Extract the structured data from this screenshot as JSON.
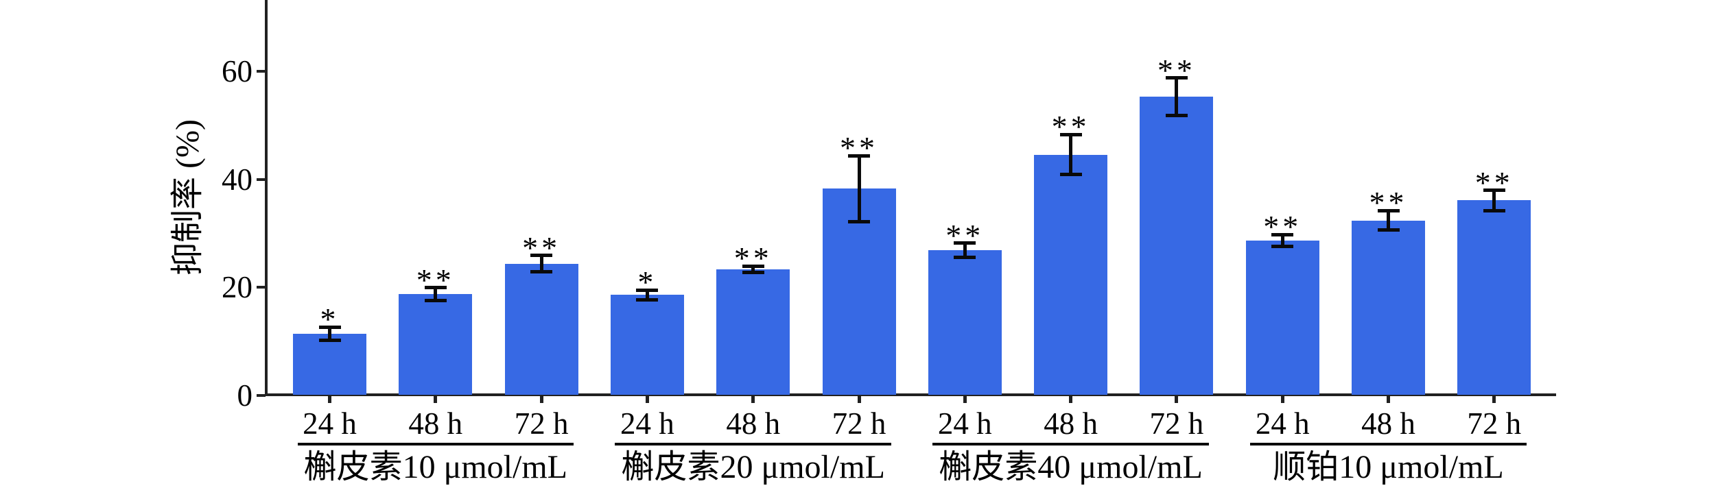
{
  "chart_data": {
    "type": "bar",
    "title": "",
    "ylabel": "抑制率 (%)",
    "xlabel": "",
    "ylim": [
      0,
      73
    ],
    "yticks": [
      0,
      20,
      40,
      60
    ],
    "grid": false,
    "legend": "none",
    "bar_color": "#3769E4",
    "error_bar_color": "#0a0a0a",
    "axis_color": "#212121",
    "categories_per_group": [
      "24 h",
      "48 h",
      "72 h"
    ],
    "groups": [
      {
        "label": "槲皮素10 μmol/mL",
        "bars": [
          {
            "time": "24 h",
            "value": 11.4,
            "error": 1.2,
            "sig": "*"
          },
          {
            "time": "48 h",
            "value": 18.7,
            "error": 1.2,
            "sig": "**"
          },
          {
            "time": "72 h",
            "value": 24.4,
            "error": 1.5,
            "sig": "**"
          }
        ]
      },
      {
        "label": "槲皮素20 μmol/mL",
        "bars": [
          {
            "time": "24 h",
            "value": 18.6,
            "error": 0.9,
            "sig": "*"
          },
          {
            "time": "48 h",
            "value": 23.3,
            "error": 0.6,
            "sig": "**"
          },
          {
            "time": "72 h",
            "value": 38.3,
            "error": 6.1,
            "sig": "**"
          }
        ]
      },
      {
        "label": "槲皮素40 μmol/mL",
        "bars": [
          {
            "time": "24 h",
            "value": 26.9,
            "error": 1.3,
            "sig": "**"
          },
          {
            "time": "48 h",
            "value": 44.6,
            "error": 3.7,
            "sig": "**"
          },
          {
            "time": "72 h",
            "value": 55.3,
            "error": 3.5,
            "sig": "**"
          }
        ]
      },
      {
        "label": "顺铂10 μmol/mL",
        "bars": [
          {
            "time": "24 h",
            "value": 28.7,
            "error": 1.1,
            "sig": "**"
          },
          {
            "time": "48 h",
            "value": 32.4,
            "error": 1.8,
            "sig": "**"
          },
          {
            "time": "72 h",
            "value": 36.1,
            "error": 1.9,
            "sig": "**"
          }
        ]
      }
    ]
  }
}
